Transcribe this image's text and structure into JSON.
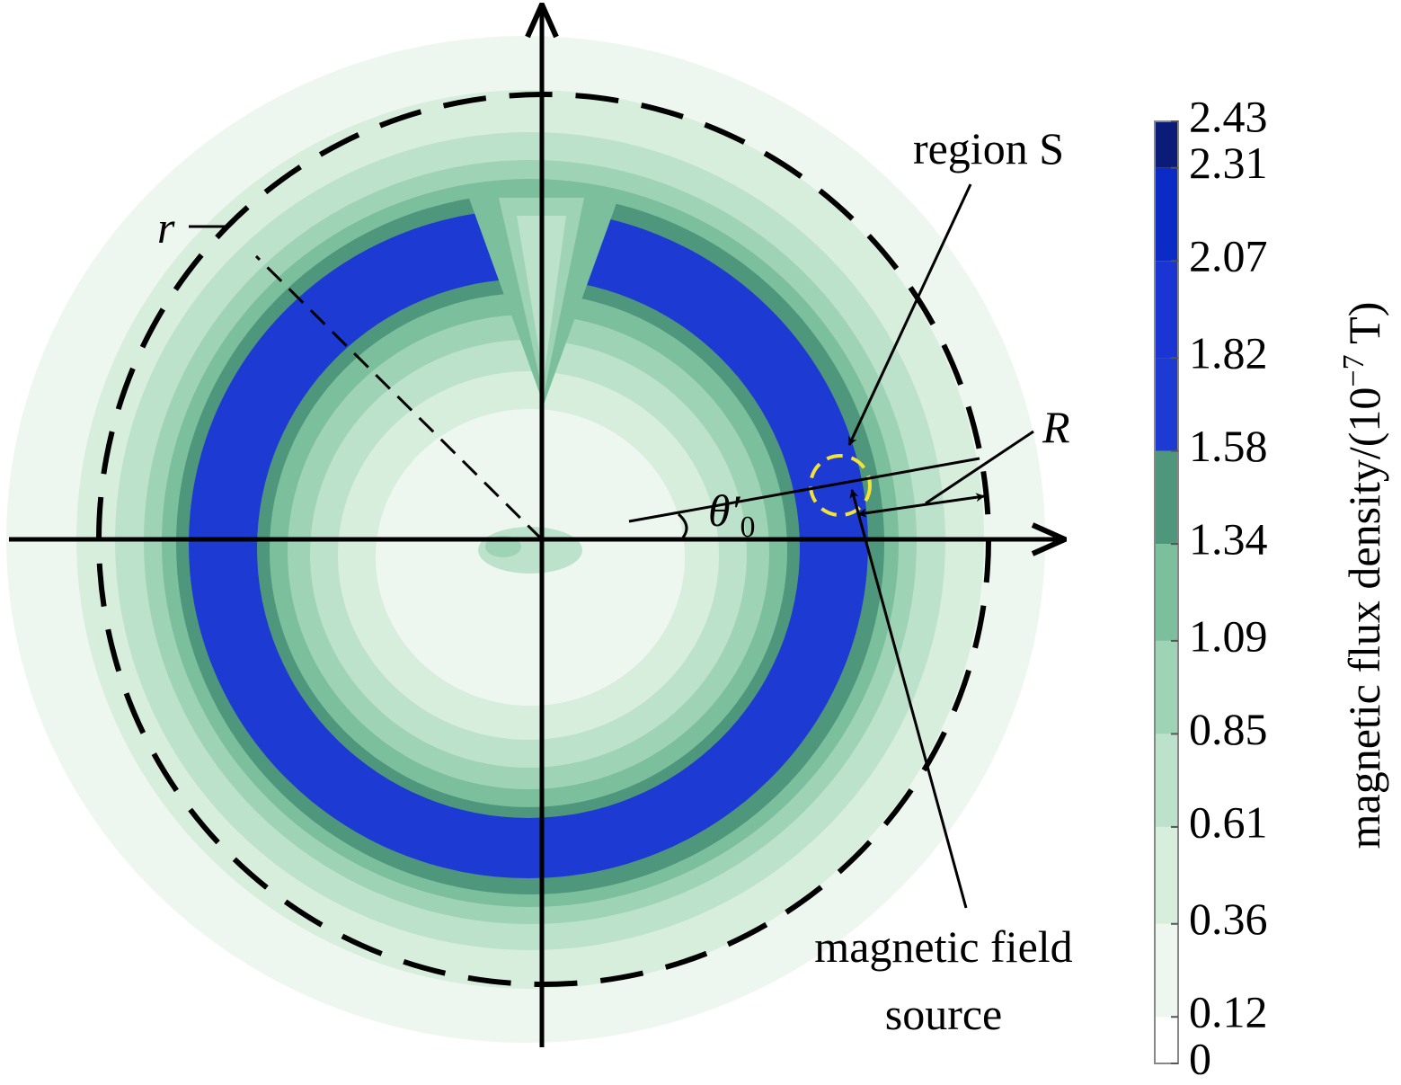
{
  "chart_data": {
    "type": "contour",
    "annotations": {
      "region": "region S",
      "source": [
        "magnetic field",
        "source"
      ],
      "r": "r",
      "R": "R",
      "theta": [
        "θ′",
        "0"
      ]
    },
    "colorbar": {
      "label": [
        "magnetic flux density/(10",
        "−7",
        " T)"
      ],
      "lim": [
        0,
        2.43
      ],
      "ticks": [
        0,
        0.12,
        0.36,
        0.61,
        0.85,
        1.09,
        1.34,
        1.58,
        1.82,
        2.07,
        2.31,
        2.43
      ],
      "colors": [
        "#ffffff",
        "#eef7ef",
        "#d8eedd",
        "#bde2cb",
        "#9fd3b5",
        "#7cbf9d",
        "#4e977c",
        "#1d3ad2",
        "#1a35d4",
        "#0b2bc6",
        "#0a1c78"
      ]
    }
  }
}
